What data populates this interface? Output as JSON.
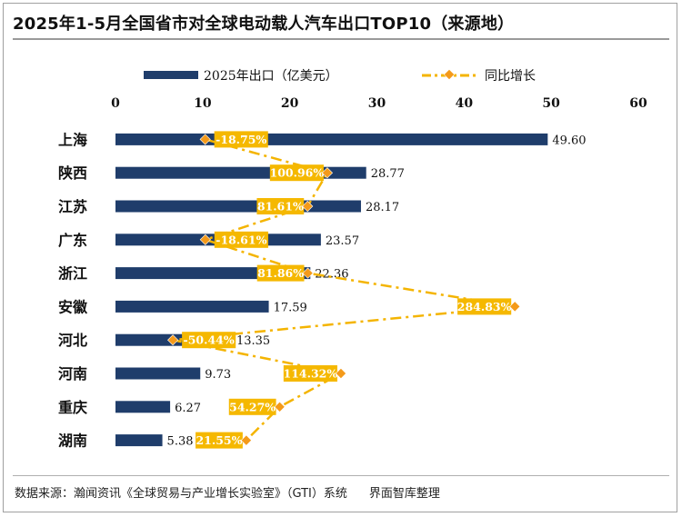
{
  "header": {
    "title": "2025年1-5月全国省市对全球电动载人汽车出口TOP10（来源地）"
  },
  "footer": {
    "source": "数据来源：瀚闻资讯《全球贸易与产业增长实验室》（GTI）系统",
    "publisher": "界面智库整理"
  },
  "colors": {
    "bar": "#1f3d6b",
    "growth_line": "#f4b400",
    "growth_marker": "#f49a1a",
    "label_box": "#f5b800"
  },
  "chart_data": {
    "type": "bar",
    "orientation": "horizontal",
    "title": "2025年1-5月全国省市对全球电动载人汽车出口TOP10（来源地）",
    "categories": [
      "上海",
      "陕西",
      "江苏",
      "广东",
      "浙江",
      "安徽",
      "河北",
      "河南",
      "重庆",
      "湖南"
    ],
    "series": [
      {
        "name": "2025年出口（亿美元）",
        "type": "bar",
        "values": [
          49.6,
          28.77,
          28.17,
          23.57,
          22.36,
          17.59,
          13.35,
          9.73,
          6.27,
          5.38
        ],
        "value_labels": [
          "49.60",
          "28.77",
          "28.17",
          "23.57",
          "22.36",
          "17.59",
          "13.35",
          "9.73",
          "6.27",
          "5.38"
        ]
      },
      {
        "name": "同比增长",
        "type": "line",
        "values": [
          -18.75,
          100.96,
          81.61,
          -18.61,
          81.86,
          284.83,
          -50.44,
          114.32,
          54.27,
          21.55
        ],
        "value_labels": [
          "-18.75%",
          "100.96%",
          "81.61%",
          "-18.61%",
          "81.86%",
          "284.83%",
          "-50.44%",
          "114.32%",
          "54.27%",
          "21.55%"
        ]
      }
    ],
    "xaxis": {
      "range": [
        0,
        60
      ],
      "ticks": [
        "0",
        "10",
        "20",
        "30",
        "40",
        "50",
        "60"
      ],
      "position": "top"
    },
    "legend": {
      "position": "top"
    },
    "grid": false
  }
}
